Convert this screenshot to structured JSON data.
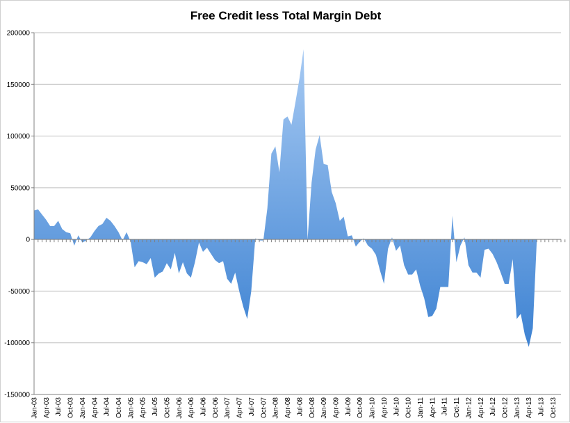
{
  "chart_data": {
    "type": "area",
    "title": "Free Credit less Total Margin Debt",
    "xlabel": "",
    "ylabel": "",
    "ylim": [
      -150000,
      200000
    ],
    "y_ticks": [
      "200000",
      "150000",
      "100000",
      "50000",
      "0",
      "-50000",
      "-100000",
      "-150000"
    ],
    "x_tick_labels": [
      "Jan-03",
      "Apr-03",
      "Jul-03",
      "Oct-03",
      "Jan-04",
      "Apr-04",
      "Jul-04",
      "Oct-04",
      "Jan-05",
      "Apr-05",
      "Jul-05",
      "Oct-05",
      "Jan-06",
      "Apr-06",
      "Jul-06",
      "Oct-06",
      "Jan-07",
      "Apr-07",
      "Jul-07",
      "Oct-07",
      "Jan-08",
      "Apr-08",
      "Jul-08",
      "Oct-08",
      "Jan-09",
      "Apr-09",
      "Jul-09",
      "Oct-09",
      "Jan-10",
      "Apr-10",
      "Jul-10",
      "Oct-10",
      "Jan-11",
      "Apr-11",
      "Jul-11",
      "Oct-11",
      "Jan-12",
      "Apr-12",
      "Jul-12",
      "Oct-12",
      "Jan-13",
      "Apr-13",
      "Jul-13",
      "Oct-13"
    ],
    "x_start": "Jan-03",
    "interval": "monthly",
    "grid": true,
    "legend": "none",
    "fill_color_top": "#a7caf3",
    "fill_color_bottom": "#3d82d2",
    "series": [
      {
        "values": [
          28000,
          29000,
          24000,
          19000,
          13000,
          13000,
          18000,
          10000,
          7000,
          6000,
          -6000,
          4000,
          -3000,
          -1000,
          2000,
          8000,
          13000,
          15000,
          21000,
          18000,
          13000,
          7000,
          -1000,
          7000,
          -2000,
          -27000,
          -21000,
          -22000,
          -24000,
          -18000,
          -37000,
          -33000,
          -31000,
          -23000,
          -29000,
          -13000,
          -33000,
          -22000,
          -33000,
          -37000,
          -22000,
          -3000,
          -12000,
          -8000,
          -14000,
          -20000,
          -23000,
          -21000,
          -38000,
          -43000,
          -32000,
          -50000,
          -65000,
          -77000,
          -50000,
          1000,
          -1000,
          -1000,
          30000,
          83000,
          90000,
          65000,
          116000,
          119000,
          111000,
          133000,
          156000,
          184000,
          0,
          55000,
          87000,
          101000,
          73000,
          72000,
          46000,
          35000,
          18000,
          22000,
          3000,
          4000,
          -7000,
          -2000,
          1000,
          -6000,
          -9000,
          -15000,
          -30000,
          -43000,
          -9000,
          2000,
          -11000,
          -6000,
          -25000,
          -34000,
          -34000,
          -29000,
          -45000,
          -57000,
          -75000,
          -74000,
          -67000,
          -46000,
          -46000,
          -46000,
          23000,
          -22000,
          -6000,
          2000,
          -25000,
          -32000,
          -32000,
          -37000,
          -10000,
          -9000,
          -14000,
          -22000,
          -32000,
          -43000,
          -43000,
          -19000,
          -77000,
          -72000,
          -92000,
          -104000,
          -86000,
          0,
          0,
          0,
          0,
          0,
          0,
          0,
          0
        ]
      }
    ]
  }
}
